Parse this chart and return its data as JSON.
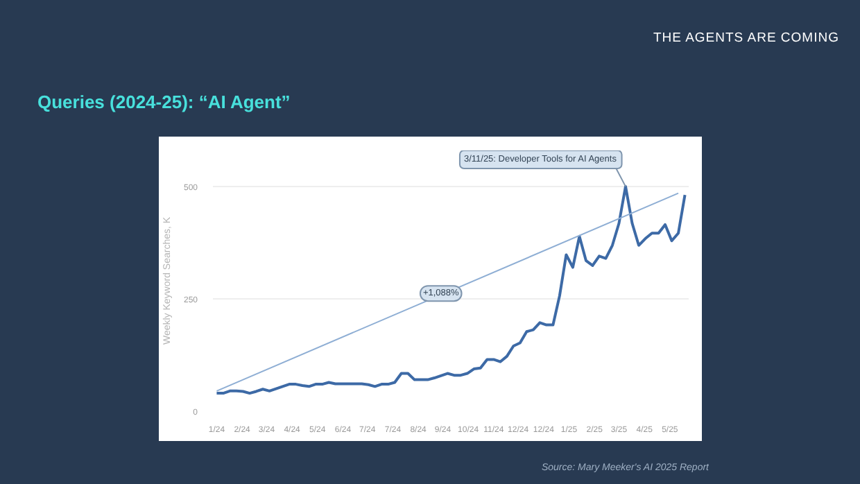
{
  "chart_data": {
    "type": "line",
    "title": "Queries (2024-25): “AI Agent”",
    "subtitle": "THE AGENTS ARE COMING",
    "ylabel": "Weekly Keyword Searches, K",
    "x": [
      "2024-01-07",
      "2024-01-14",
      "2024-01-21",
      "2024-01-28",
      "2024-02-04",
      "2024-02-11",
      "2024-02-18",
      "2024-02-25",
      "2024-03-03",
      "2024-03-10",
      "2024-03-17",
      "2024-03-24",
      "2024-03-31",
      "2024-04-07",
      "2024-04-14",
      "2024-04-21",
      "2024-04-28",
      "2024-05-05",
      "2024-05-12",
      "2024-05-19",
      "2024-05-26",
      "2024-06-02",
      "2024-06-09",
      "2024-06-16",
      "2024-06-23",
      "2024-06-30",
      "2024-07-07",
      "2024-07-14",
      "2024-07-21",
      "2024-07-28",
      "2024-08-04",
      "2024-08-11",
      "2024-08-18",
      "2024-08-25",
      "2024-09-01",
      "2024-09-08",
      "2024-09-15",
      "2024-09-22",
      "2024-09-29",
      "2024-10-06",
      "2024-10-13",
      "2024-10-20",
      "2024-10-27",
      "2024-11-03",
      "2024-11-10",
      "2024-11-17",
      "2024-11-24",
      "2024-12-01",
      "2024-12-08",
      "2024-12-15",
      "2024-12-22",
      "2024-12-29",
      "2025-01-05",
      "2025-01-12",
      "2025-01-19",
      "2025-01-26",
      "2025-02-02",
      "2025-02-09",
      "2025-02-16",
      "2025-02-23",
      "2025-03-02",
      "2025-03-09",
      "2025-03-16",
      "2025-03-23",
      "2025-03-30",
      "2025-04-06",
      "2025-04-13",
      "2025-04-20",
      "2025-04-27",
      "2025-05-04",
      "2025-05-11",
      "2025-05-18"
    ],
    "series": [
      {
        "color": "#3d6aa6",
        "values": [
          40,
          40,
          45,
          45,
          44,
          40,
          44,
          49,
          45,
          50,
          55,
          60,
          60,
          57,
          55,
          60,
          60,
          64,
          61,
          61,
          61,
          61,
          61,
          59,
          55,
          60,
          60,
          64,
          84,
          84,
          70,
          70,
          70,
          74,
          79,
          84,
          80,
          80,
          84,
          94,
          96,
          115,
          115,
          110,
          122,
          145,
          152,
          177,
          181,
          197,
          192,
          192,
          257,
          348,
          320,
          389,
          335,
          324,
          345,
          340,
          369,
          418,
          500,
          418,
          369,
          384,
          396,
          396,
          415,
          379,
          396,
          481
        ]
      },
      {
        "color": "#8eaed4",
        "x": [
          "2024-01-07",
          "2025-05-11"
        ],
        "values": [
          45,
          485
        ]
      }
    ],
    "xlim": [
      "2024-01-03",
      "2025-05-22"
    ],
    "xticks": [
      {
        "value": "2024-01-07",
        "label": "1/24"
      },
      {
        "value": "2024-02-03",
        "label": "2/24"
      },
      {
        "value": "2024-02-29",
        "label": "3/24"
      },
      {
        "value": "2024-03-27",
        "label": "4/24"
      },
      {
        "value": "2024-04-23",
        "label": "5/24"
      },
      {
        "value": "2024-05-20",
        "label": "6/24"
      },
      {
        "value": "2024-06-15",
        "label": "7/24"
      },
      {
        "value": "2024-07-12",
        "label": "7/24"
      },
      {
        "value": "2024-08-08",
        "label": "8/24"
      },
      {
        "value": "2024-09-03",
        "label": "9/24"
      },
      {
        "value": "2024-09-30",
        "label": "10/24"
      },
      {
        "value": "2024-10-27",
        "label": "11/24"
      },
      {
        "value": "2024-11-22",
        "label": "12/24"
      },
      {
        "value": "2024-12-19",
        "label": "12/24"
      },
      {
        "value": "2025-01-15",
        "label": "1/25"
      },
      {
        "value": "2025-02-11",
        "label": "2/25"
      },
      {
        "value": "2025-03-09",
        "label": "3/25"
      },
      {
        "value": "2025-04-05",
        "label": "4/25"
      },
      {
        "value": "2025-05-02",
        "label": "5/25"
      }
    ],
    "ylim": [
      0,
      580
    ],
    "yticks": [
      0,
      250,
      500
    ],
    "grid": "y",
    "annotations": [
      {
        "text": "+1,088%",
        "x": "2024-09-01",
        "y": 262
      },
      {
        "text": "3/11/25: Developer Tools for AI Agents",
        "x": "2025-03-16",
        "y": 500
      },
      "Source: Mary Meeker's AI 2025 Report"
    ]
  }
}
